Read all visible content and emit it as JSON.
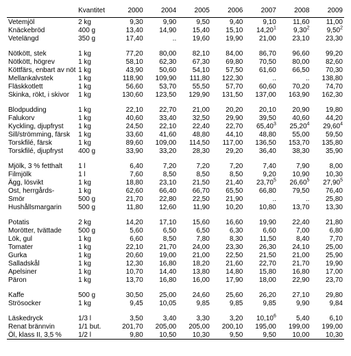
{
  "headers": {
    "qty": "Kvantitet",
    "y2000": "2000",
    "y2004": "2004",
    "y2005": "2005",
    "y2006": "2006",
    "y2007": "2007",
    "y2008": "2008",
    "y2009": "2009"
  },
  "groups": [
    [
      {
        "label": "Vetemjöl",
        "qty": "2 kg",
        "v": [
          "9,30",
          "9,90",
          "9,50",
          "9,40",
          "9,10",
          "11,60",
          "11,00"
        ]
      },
      {
        "label": "Knäckebröd",
        "qty": "400 g",
        "v": [
          "13,40",
          "14,90",
          "15,40",
          "15,10",
          "14,20¹",
          "9,30²",
          "9,50²"
        ]
      },
      {
        "label": "Vetelängd",
        "qty": "350 g",
        "v": [
          "17,40",
          "..",
          "19,60",
          "19,90",
          "21,00",
          "23,10",
          "23,30"
        ]
      }
    ],
    [
      {
        "label": "Nötkött, stek",
        "qty": "1 kg",
        "v": [
          "77,20",
          "80,00",
          "82,10",
          "84,00",
          "86,70",
          "96,60",
          "99,20"
        ]
      },
      {
        "label": "Nötkött, högrev",
        "qty": "1 kg",
        "v": [
          "58,10",
          "62,30",
          "67,30",
          "69,80",
          "70,50",
          "80,00",
          "82,60"
        ]
      },
      {
        "label": "Köttfärs, enbart av nöt",
        "qty": "1 kg",
        "v": [
          "43,90",
          "50,60",
          "54,10",
          "57,50",
          "61,60",
          "66,50",
          "70,30"
        ]
      },
      {
        "label": "Mellankalvstek",
        "qty": "1 kg",
        "v": [
          "118,90",
          "109,90",
          "111,80",
          "122,30",
          "..",
          "..",
          "138,80"
        ]
      },
      {
        "label": "Fläskkotlett",
        "qty": "1 kg",
        "v": [
          "56,60",
          "53,70",
          "55,50",
          "57,70",
          "60,60",
          "70,20",
          "74,70"
        ]
      },
      {
        "label": "Skinka, rökt, i skivor",
        "qty": "1 kg",
        "v": [
          "130,60",
          "123,50",
          "129,90",
          "131,50",
          "137,00",
          "163,90",
          "162,30"
        ]
      }
    ],
    [
      {
        "label": "Blodpudding",
        "qty": "1 kg",
        "v": [
          "22,10",
          "22,70",
          "21,00",
          "20,20",
          "20,10",
          "20,90",
          "19,80"
        ]
      },
      {
        "label": "Falukorv",
        "qty": "1 kg",
        "v": [
          "40,60",
          "33,40",
          "32,50",
          "29,90",
          "39,50",
          "40,60",
          "44,20"
        ]
      },
      {
        "label": "Kyckling, djupfryst",
        "qty": "1 kg",
        "v": [
          "24,50",
          "22,10",
          "22,40",
          "22,70",
          "65,40³",
          "25,20⁴",
          "29,60⁴"
        ]
      },
      {
        "label": "Sill/strömming, färsk",
        "qty": "1 kg",
        "v": [
          "33,60",
          "41,60",
          "48,80",
          "44,10",
          "48,80",
          "55,00",
          "59,50"
        ]
      },
      {
        "label": "Torskfilé, färsk",
        "qty": "1 kg",
        "v": [
          "89,60",
          "109,00",
          "114,50",
          "117,00",
          "136,50",
          "153,70",
          "135,80"
        ]
      },
      {
        "label": "Torskfilé, djupfryst",
        "qty": "400 g",
        "v": [
          "33,90",
          "33,20",
          "28,30",
          "29,20",
          "36,40",
          "38,30",
          "35,90"
        ]
      }
    ],
    [
      {
        "label": "Mjölk, 3 % fetthalt",
        "qty": "1 l",
        "v": [
          "6,40",
          "7,20",
          "7,20",
          "7,20",
          "7,40",
          "7,90",
          "8,00"
        ]
      },
      {
        "label": "Filmjölk",
        "qty": "1 l",
        "v": [
          "7,60",
          "8,50",
          "8,50",
          "8,50",
          "9,20",
          "10,90",
          "10,30"
        ]
      },
      {
        "label": "Ägg, lösvikt",
        "qty": "1 kg",
        "v": [
          "18,80",
          "23,10",
          "21,50",
          "21,40",
          "23,70⁵",
          "26,60⁵",
          "27,90⁵"
        ]
      },
      {
        "label": "Ost, herrgårds-",
        "qty": "1 kg",
        "v": [
          "62,60",
          "66,40",
          "66,70",
          "65,50",
          "66,80",
          "79,50",
          "76,40"
        ]
      },
      {
        "label": "Smör",
        "qty": "500 g",
        "v": [
          "21,70",
          "22,80",
          "22,50",
          "21,90",
          "..",
          "..",
          "25,80"
        ]
      },
      {
        "label": "Hushållsmargarin",
        "qty": "500 g",
        "v": [
          "11,80",
          "12,60",
          "11,90",
          "10,20",
          "10,80",
          "13,70",
          "13,30"
        ]
      }
    ],
    [
      {
        "label": "Potatis",
        "qty": "2 kg",
        "v": [
          "14,20",
          "17,10",
          "15,60",
          "16,60",
          "19,90",
          "22,40",
          "21,80"
        ]
      },
      {
        "label": "Morötter, tvättade",
        "qty": "500 g",
        "v": [
          "5,60",
          "6,50",
          "6,50",
          "6,30",
          "6,60",
          "7,00",
          "6,80"
        ]
      },
      {
        "label": "Lök, gul",
        "qty": "1 kg",
        "v": [
          "6,60",
          "8,50",
          "7,80",
          "8,30",
          "11,50",
          "8,40",
          "7,70"
        ]
      },
      {
        "label": "Tomater",
        "qty": "1 kg",
        "v": [
          "22,10",
          "21,70",
          "24,00",
          "23,30",
          "26,30",
          "24,10",
          "25,00"
        ]
      },
      {
        "label": "Gurka",
        "qty": "1 kg",
        "v": [
          "20,60",
          "19,00",
          "21,00",
          "22,50",
          "21,50",
          "21,00",
          "25,90"
        ]
      },
      {
        "label": "Salladskål",
        "qty": "1 kg",
        "v": [
          "12,30",
          "16,80",
          "18,20",
          "21,60",
          "22,70",
          "21,70",
          "19,90"
        ]
      },
      {
        "label": "Apelsiner",
        "qty": "1 kg",
        "v": [
          "10,70",
          "14,40",
          "13,80",
          "14,80",
          "15,80",
          "16,80",
          "17,00"
        ]
      },
      {
        "label": "Päron",
        "qty": "1 kg",
        "v": [
          "13,70",
          "16,80",
          "16,00",
          "17,90",
          "18,00",
          "22,90",
          "23,70"
        ]
      }
    ],
    [
      {
        "label": "Kaffe",
        "qty": "500 g",
        "v": [
          "30,50",
          "25,00",
          "24,60",
          "25,60",
          "26,20",
          "27,10",
          "29,80"
        ]
      },
      {
        "label": "Strösocker",
        "qty": "1 kg",
        "v": [
          "9,45",
          "10,05",
          "9,85",
          "9,85",
          "9,85",
          "9,90",
          "9,84"
        ]
      }
    ],
    [
      {
        "label": "Läskedryck",
        "qty": "1/3 l",
        "v": [
          "3,50",
          "3,40",
          "3,30",
          "3,20",
          "10,10⁶",
          "5,40",
          "6,10"
        ]
      },
      {
        "label": "Renat brännvin",
        "qty": "1/1 but.",
        "v": [
          "201,70",
          "205,00",
          "205,00",
          "200,10",
          "195,00",
          "199,00",
          "199,00"
        ]
      },
      {
        "label": "Öl, klass II, 3,5 %",
        "qty": "1/2 l",
        "v": [
          "9,80",
          "10,50",
          "10,30",
          "9,50",
          "9,50",
          "10,00",
          "10,30"
        ]
      }
    ]
  ]
}
